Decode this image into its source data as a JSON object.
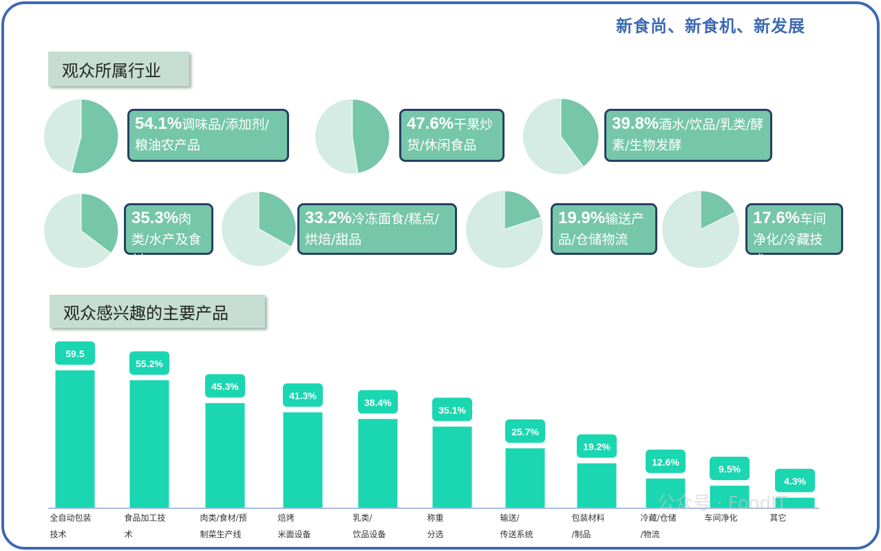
{
  "header": {
    "title": "新食尚、新食机、新发展"
  },
  "sections": {
    "industry": "观众所属行业",
    "products": "观众感兴趣的主要产品"
  },
  "colors": {
    "frame": "#3d69b3",
    "pie_main": "#76c6aa",
    "pie_rest": "#d4ece3",
    "bar": "#1ad6b1",
    "label_border": "#263f63"
  },
  "industry": [
    {
      "pct": "54.1%",
      "value": 54.1,
      "text": "调味品/添加剂/粮油农产品"
    },
    {
      "pct": "47.6%",
      "value": 47.6,
      "text": "干果炒货/休闲食品"
    },
    {
      "pct": "39.8%",
      "value": 39.8,
      "text": "酒水/饮品/乳类/酵素/生物发酵"
    },
    {
      "pct": "35.3%",
      "value": 35.3,
      "text": "肉类/水产及食材"
    },
    {
      "pct": "33.2%",
      "value": 33.2,
      "text": "冷冻面食/糕点/烘焙/甜品"
    },
    {
      "pct": "19.9%",
      "value": 19.9,
      "text": "输送产品/仓储物流"
    },
    {
      "pct": "17.6%",
      "value": 17.6,
      "text": "车间净化/冷藏技术"
    }
  ],
  "chart_data": {
    "type": "bar",
    "categories": [
      "全自动包装\n技术",
      "食品加工技\n术",
      "肉类/食材/预\n制菜生产线",
      "焙烤\n米面设备",
      "乳类/\n饮品设备",
      "称重\n分选",
      "输送/\n传送系统",
      "包装材料\n/制品",
      "冷藏/仓储\n/物流",
      "车间净化",
      "其它"
    ],
    "values": [
      59.5,
      55.2,
      45.3,
      41.3,
      38.4,
      35.1,
      25.7,
      19.2,
      12.6,
      9.5,
      4.3
    ],
    "data_labels": [
      "59.5",
      "55.2%",
      "45.3%",
      "41.3%",
      "38.4%",
      "35.1%",
      "25.7%",
      "19.2%",
      "12.6%",
      "9.5%",
      "4.3%"
    ]
  },
  "watermark": "公众号 · FoodIT"
}
